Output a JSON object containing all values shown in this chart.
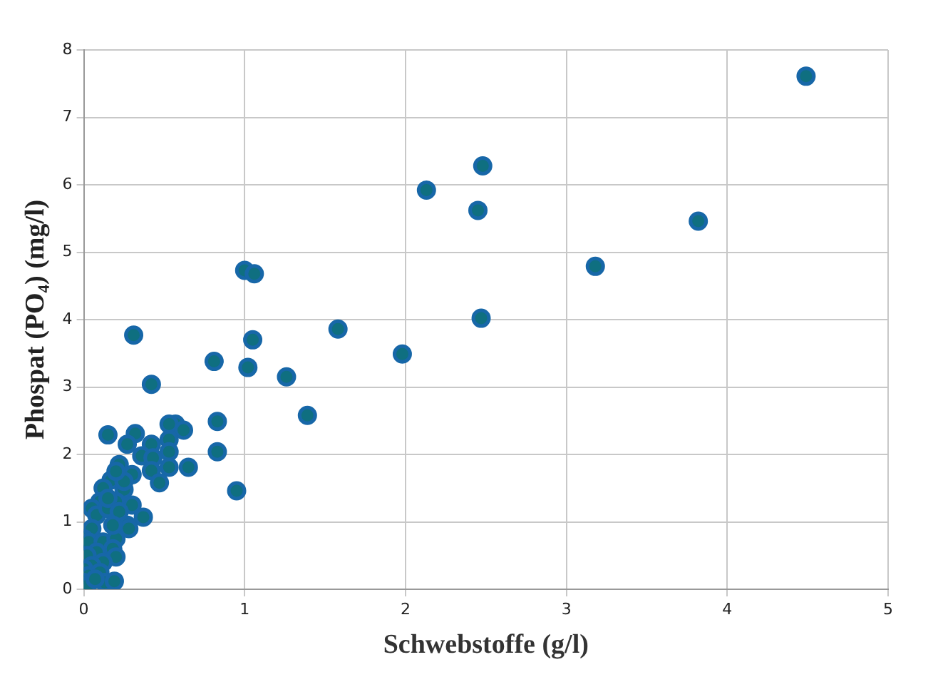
{
  "chart_data": {
    "type": "scatter",
    "xlabel": "Schwebstoffe (g/l)",
    "ylabel": "Phospat (PO₄) (mg/l)",
    "xlim": [
      0,
      5
    ],
    "xticks": [
      0,
      1,
      2,
      3,
      4,
      5
    ],
    "ylim": [
      0,
      8
    ],
    "yticks": [
      0,
      1,
      2,
      3,
      4,
      5,
      6,
      7,
      8
    ],
    "grid": true,
    "legend": false,
    "marker": "circle",
    "series": [
      {
        "color": "#1767a8",
        "x": [
          4.49,
          2.48,
          2.13,
          2.45,
          3.82,
          3.18,
          1.0,
          1.06,
          2.47,
          1.58,
          0.31,
          1.05,
          1.98,
          0.81,
          1.02,
          1.26,
          0.42,
          1.39,
          0.83,
          0.57,
          0.53,
          0.15,
          0.32,
          0.62,
          0.42,
          0.27,
          0.53,
          0.53,
          0.83,
          0.36,
          0.43,
          0.22,
          0.3,
          0.42,
          0.53,
          0.65,
          0.47,
          0.95,
          0.17,
          0.12,
          0.25,
          0.3,
          0.37,
          0.2,
          0.1,
          0.05,
          0.08,
          0.15,
          0.27,
          0.28,
          0.05,
          0,
          0.03,
          0.12,
          0.2,
          0.18,
          0.08,
          0.02,
          0.2,
          0.12,
          0.05,
          0,
          0.03,
          0.1,
          0,
          0.02,
          0.13,
          0.19,
          0.07,
          0.15,
          0.22,
          0.18,
          0.25,
          0.2
        ],
        "values": [
          7.61,
          6.28,
          5.92,
          5.62,
          5.46,
          4.79,
          4.73,
          4.68,
          4.02,
          3.86,
          3.77,
          3.7,
          3.49,
          3.38,
          3.29,
          3.15,
          3.04,
          2.58,
          2.49,
          2.45,
          2.45,
          2.29,
          2.31,
          2.36,
          2.15,
          2.15,
          2.22,
          2.04,
          2.04,
          1.98,
          1.95,
          1.85,
          1.7,
          1.76,
          1.81,
          1.81,
          1.58,
          1.46,
          1.62,
          1.5,
          1.48,
          1.25,
          1.07,
          1.3,
          1.3,
          1.2,
          1.1,
          1.2,
          0.95,
          0.9,
          0.9,
          0.75,
          0.7,
          0.7,
          0.75,
          0.6,
          0.55,
          0.5,
          0.48,
          0.4,
          0.35,
          0.3,
          0.2,
          0.25,
          0.1,
          0.05,
          0.1,
          0.12,
          0.15,
          1.35,
          1.15,
          0.95,
          1.6,
          1.75
        ]
      }
    ]
  }
}
